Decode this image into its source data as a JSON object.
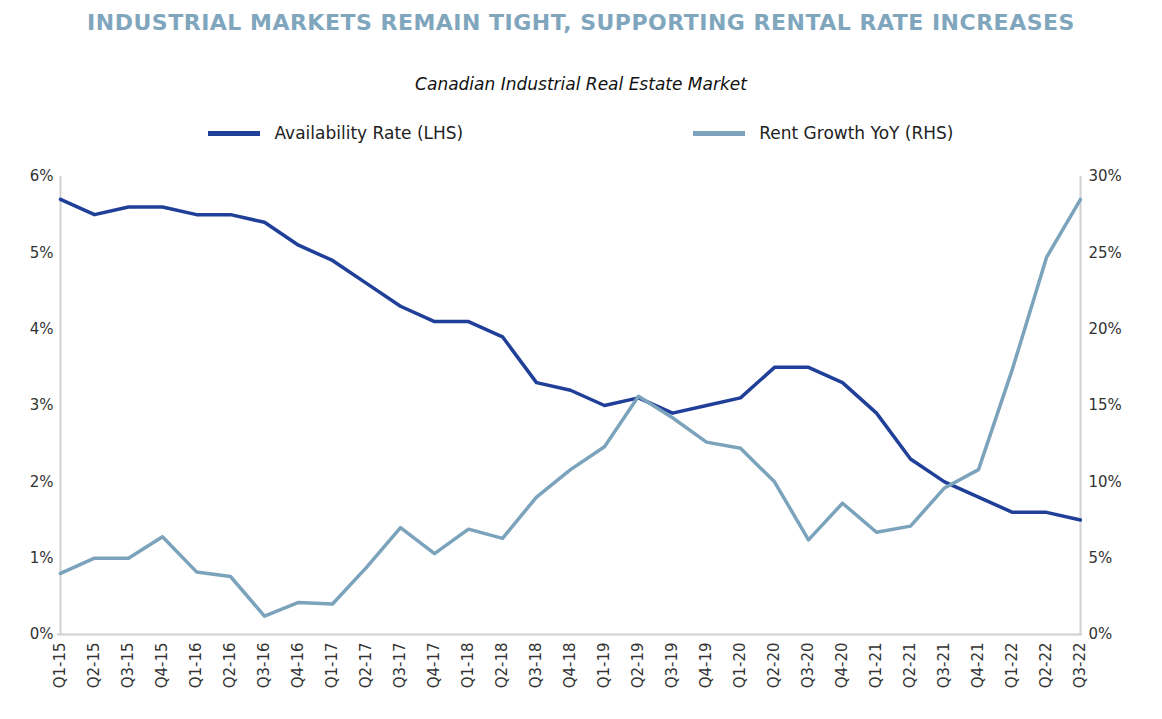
{
  "chart_data": {
    "type": "line",
    "title": "INDUSTRIAL MARKETS REMAIN TIGHT, SUPPORTING RENTAL RATE INCREASES",
    "subtitle": "Canadian Industrial Real Estate Market",
    "categories": [
      "Q1-15",
      "Q2-15",
      "Q3-15",
      "Q4-15",
      "Q1-16",
      "Q2-16",
      "Q3-16",
      "Q4-16",
      "Q1-17",
      "Q2-17",
      "Q3-17",
      "Q4-17",
      "Q1-18",
      "Q2-18",
      "Q3-18",
      "Q4-18",
      "Q1-19",
      "Q2-19",
      "Q3-19",
      "Q4-19",
      "Q1-20",
      "Q2-20",
      "Q3-20",
      "Q4-20",
      "Q1-21",
      "Q2-21",
      "Q3-21",
      "Q4-21",
      "Q1-22",
      "Q2-22",
      "Q3-22"
    ],
    "series": [
      {
        "name": "Availability Rate (LHS)",
        "color": "#1f3f98",
        "values": [
          5.7,
          5.5,
          5.6,
          5.6,
          5.5,
          5.5,
          5.4,
          5.1,
          4.9,
          4.6,
          4.3,
          4.1,
          4.1,
          3.9,
          3.3,
          3.2,
          3.0,
          3.1,
          2.9,
          3.0,
          3.1,
          3.5,
          3.5,
          3.3,
          2.9,
          2.3,
          2.0,
          1.8,
          1.6,
          1.6,
          1.5
        ]
      },
      {
        "name": "Rent Growth YoY (RHS)",
        "color": "#7ba3bc",
        "axis": "y2",
        "values": [
          4.0,
          5.0,
          5.0,
          6.4,
          4.1,
          3.8,
          1.2,
          2.1,
          2.0,
          4.4,
          7.0,
          5.3,
          6.9,
          6.3,
          9.0,
          10.8,
          12.3,
          15.6,
          14.2,
          12.6,
          12.2,
          10.0,
          6.2,
          8.6,
          6.7,
          7.1,
          9.6,
          10.8,
          17.4,
          24.7,
          28.5
        ]
      }
    ],
    "ylim": [
      0,
      6
    ],
    "yticks": [
      {
        "value": 0,
        "label": "0%"
      },
      {
        "value": 1,
        "label": "1%"
      },
      {
        "value": 2,
        "label": "2%"
      },
      {
        "value": 3,
        "label": "3%"
      },
      {
        "value": 4,
        "label": "4%"
      },
      {
        "value": 5,
        "label": "5%"
      },
      {
        "value": 6,
        "label": "6%"
      }
    ],
    "y2lim": [
      0,
      30
    ],
    "y2ticks": [
      {
        "value": 0,
        "label": "0%"
      },
      {
        "value": 5,
        "label": "5%"
      },
      {
        "value": 10,
        "label": "10%"
      },
      {
        "value": 15,
        "label": "15%"
      },
      {
        "value": 20,
        "label": "20%"
      },
      {
        "value": 25,
        "label": "25%"
      },
      {
        "value": 30,
        "label": "30%"
      }
    ],
    "grid": false,
    "legend": "top"
  }
}
